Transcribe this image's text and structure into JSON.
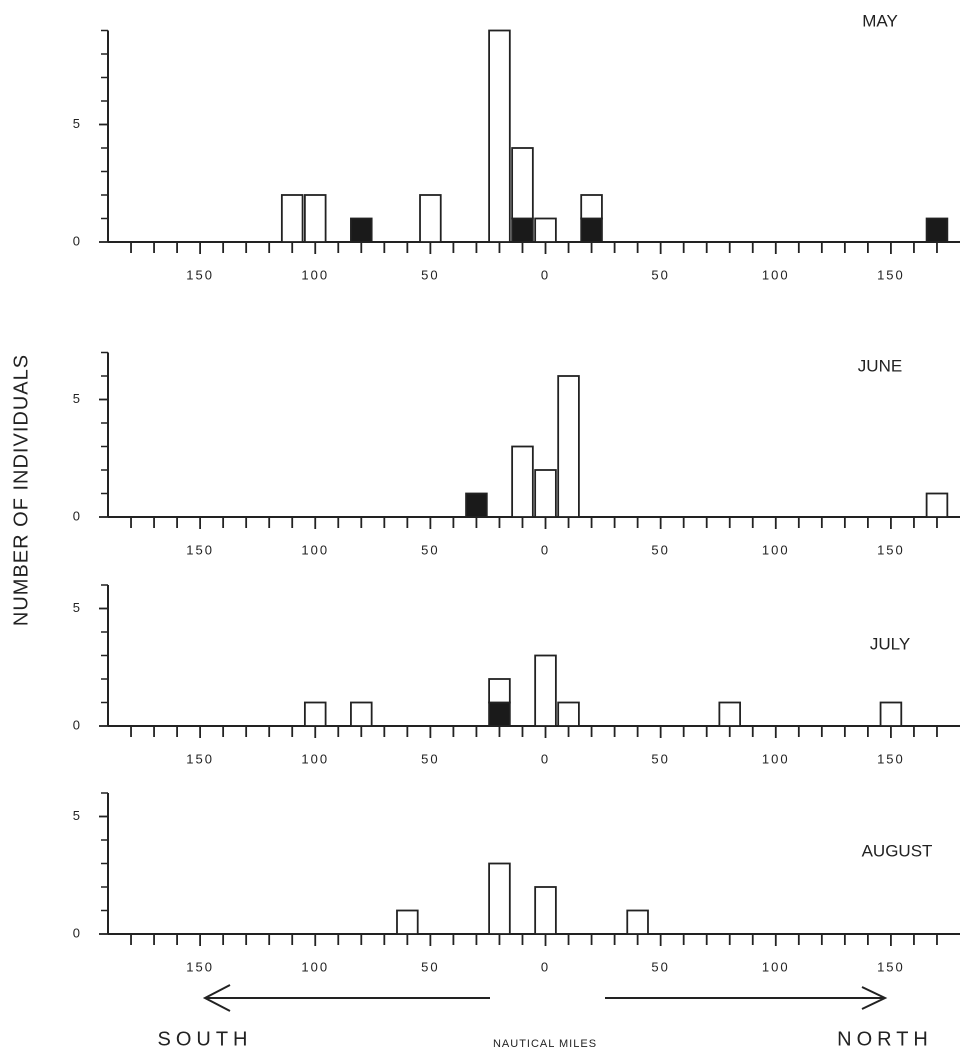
{
  "ylabel": "NUMBER OF INDIVIDUALS",
  "xlabel": "NAUTICAL MILES",
  "south_label": "SOUTH",
  "north_label": "NORTH",
  "chart_data": [
    {
      "type": "bar",
      "title": "MAY",
      "xlim": [
        -190,
        180
      ],
      "xticks": [
        {
          "value": -150,
          "label": "150"
        },
        {
          "value": -100,
          "label": "100"
        },
        {
          "value": -50,
          "label": "50"
        },
        0,
        50,
        100,
        150
      ],
      "xminor": [
        -180,
        -170,
        -160,
        -140,
        -130,
        -120,
        -110,
        -90,
        -80,
        -70,
        -60,
        -40,
        -30,
        -20,
        -10,
        10,
        20,
        30,
        40,
        60,
        70,
        80,
        90,
        110,
        120,
        130,
        140,
        160,
        170
      ],
      "ylim": [
        0,
        9
      ],
      "yticks": [
        0,
        5
      ],
      "yminor": [
        1,
        2,
        3,
        4,
        6,
        7,
        8,
        9
      ],
      "x": [
        -110,
        -100,
        -80,
        -50,
        -20,
        -10,
        0,
        20,
        170
      ],
      "series": [
        {
          "color": "#1a1a1a",
          "values": [
            null,
            null,
            1,
            null,
            null,
            1,
            null,
            1,
            1
          ]
        },
        {
          "color": "#ffffff",
          "values": [
            2,
            2,
            null,
            2,
            9,
            3,
            1,
            1,
            null
          ]
        }
      ]
    },
    {
      "type": "bar",
      "title": "JUNE",
      "xlim": [
        -190,
        180
      ],
      "xticks": [
        {
          "value": -150,
          "label": "150"
        },
        {
          "value": -100,
          "label": "100"
        },
        {
          "value": -50,
          "label": "50"
        },
        0,
        50,
        100,
        150
      ],
      "xminor": [
        -180,
        -170,
        -160,
        -140,
        -130,
        -120,
        -110,
        -90,
        -80,
        -70,
        -60,
        -40,
        -30,
        -20,
        -10,
        10,
        20,
        30,
        40,
        60,
        70,
        80,
        90,
        110,
        120,
        130,
        140,
        160,
        170
      ],
      "ylim": [
        0,
        7
      ],
      "yticks": [
        0,
        5
      ],
      "yminor": [
        1,
        2,
        3,
        4,
        6,
        7
      ],
      "x": [
        -30,
        -10,
        0,
        10,
        170
      ],
      "series": [
        {
          "color": "#1a1a1a",
          "values": [
            1,
            null,
            null,
            null,
            null
          ]
        },
        {
          "color": "#ffffff",
          "values": [
            null,
            3,
            2,
            6,
            1
          ]
        }
      ]
    },
    {
      "type": "bar",
      "title": "JULY",
      "xlim": [
        -190,
        180
      ],
      "xticks": [
        {
          "value": -150,
          "label": "150"
        },
        {
          "value": -100,
          "label": "100"
        },
        {
          "value": -50,
          "label": "50"
        },
        0,
        50,
        100,
        150
      ],
      "xminor": [
        -180,
        -170,
        -160,
        -140,
        -130,
        -120,
        -110,
        -90,
        -80,
        -70,
        -60,
        -40,
        -30,
        -20,
        -10,
        10,
        20,
        30,
        40,
        60,
        70,
        80,
        90,
        110,
        120,
        130,
        140,
        160,
        170
      ],
      "ylim": [
        0,
        6
      ],
      "yticks": [
        0,
        5
      ],
      "yminor": [
        1,
        2,
        3,
        4,
        6
      ],
      "x": [
        -100,
        -80,
        -20,
        0,
        10,
        80,
        150
      ],
      "series": [
        {
          "color": "#1a1a1a",
          "values": [
            null,
            null,
            1,
            null,
            null,
            null,
            null
          ]
        },
        {
          "color": "#ffffff",
          "values": [
            1,
            1,
            1,
            3,
            1,
            1,
            1
          ]
        }
      ]
    },
    {
      "type": "bar",
      "title": "AUGUST",
      "xlim": [
        -190,
        180
      ],
      "xticks": [
        {
          "value": -150,
          "label": "150"
        },
        {
          "value": -100,
          "label": "100"
        },
        {
          "value": -50,
          "label": "50"
        },
        0,
        50,
        100,
        150
      ],
      "xminor": [
        -180,
        -170,
        -160,
        -140,
        -130,
        -120,
        -110,
        -90,
        -80,
        -70,
        -60,
        -40,
        -30,
        -20,
        -10,
        10,
        20,
        30,
        40,
        60,
        70,
        80,
        90,
        110,
        120,
        130,
        140,
        160,
        170
      ],
      "ylim": [
        0,
        6
      ],
      "yticks": [
        0,
        5
      ],
      "yminor": [
        1,
        2,
        3,
        4,
        6
      ],
      "x": [
        -60,
        -20,
        0,
        40
      ],
      "series": [
        {
          "color": "#1a1a1a",
          "values": [
            null,
            null,
            null,
            null
          ]
        },
        {
          "color": "#ffffff",
          "values": [
            1,
            3,
            2,
            1
          ]
        }
      ]
    }
  ]
}
